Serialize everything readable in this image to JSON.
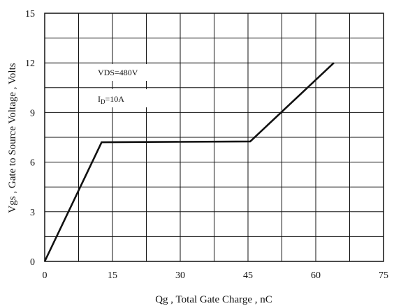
{
  "chart_data": {
    "type": "line",
    "title": "",
    "xlabel": "Qg , Total Gate Charge , nC",
    "ylabel": "Vgs , Gate to Source Voltage , Volts",
    "xlim": [
      0,
      75
    ],
    "ylim": [
      0,
      15
    ],
    "x_ticks": [
      0,
      7.5,
      15,
      22.5,
      30,
      37.5,
      45,
      52.5,
      60,
      67.5,
      75
    ],
    "y_ticks": [
      0,
      1.5,
      3,
      4.5,
      6,
      7.5,
      9,
      10.5,
      12,
      13.5,
      15
    ],
    "x_tick_labels": [
      "0",
      "15",
      "30",
      "45",
      "60",
      "75"
    ],
    "y_tick_labels": [
      "0",
      "3",
      "6",
      "9",
      "12",
      "15"
    ],
    "grid": true,
    "legend": "none",
    "series": [
      {
        "x": [
          0,
          12.6,
          45.5,
          64
        ],
        "y": [
          0,
          7.2,
          7.25,
          12
        ]
      }
    ],
    "annotations": [
      {
        "key": "vds",
        "text": "VDS=480V"
      },
      {
        "key": "id",
        "base": "I",
        "sub": "D",
        "rest": "=10A"
      }
    ],
    "colors": {
      "line": "#111111",
      "grid": "#111111",
      "background": "#ffffff"
    }
  }
}
